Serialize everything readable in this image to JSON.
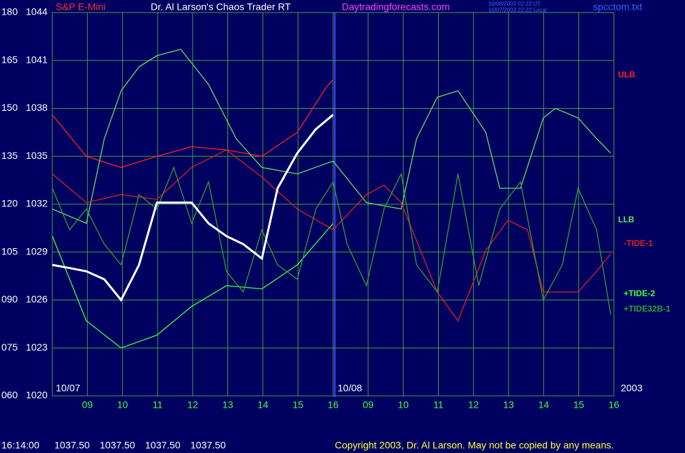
{
  "chart_data": {
    "type": "line",
    "header": {
      "symbol": "S&P E-Mini",
      "title": "Dr. Al Larson's Chaos Trader RT",
      "site": "Daytradingforecasts.com",
      "time_ut": "10/08/2003 02:22 UT",
      "time_local": "10/07/2003 22:22 Local",
      "file": "spcctom.txt"
    },
    "date_labels": [
      "10/07",
      "10/08",
      "2003"
    ],
    "xlim": [
      0,
      16
    ],
    "xticks": [
      {
        "value": 1,
        "label": "09"
      },
      {
        "value": 2,
        "label": "10"
      },
      {
        "value": 3,
        "label": "11"
      },
      {
        "value": 4,
        "label": "12"
      },
      {
        "value": 5,
        "label": "13"
      },
      {
        "value": 6,
        "label": "14"
      },
      {
        "value": 7,
        "label": "15"
      },
      {
        "value": 8,
        "label": "16"
      },
      {
        "value": 9,
        "label": "09"
      },
      {
        "value": 10,
        "label": "10"
      },
      {
        "value": 11,
        "label": "11"
      },
      {
        "value": 12,
        "label": "12"
      },
      {
        "value": 13,
        "label": "13"
      },
      {
        "value": 14,
        "label": "14"
      },
      {
        "value": 15,
        "label": "15"
      },
      {
        "value": 16,
        "label": "16"
      }
    ],
    "ylim": [
      1020,
      1044
    ],
    "yticks": [
      1020,
      1023,
      1026,
      1029,
      1032,
      1035,
      1038,
      1041,
      1044
    ],
    "y2lim": [
      60,
      180
    ],
    "y2ticks": [
      {
        "value": 60,
        "label": "060"
      },
      {
        "value": 75,
        "label": "075"
      },
      {
        "value": 90,
        "label": "090"
      },
      105,
      120,
      135,
      150,
      165,
      180
    ],
    "grid": true,
    "price": {
      "color": "#ffffff",
      "x": [
        0,
        0.5,
        0.97,
        1.48,
        1.96,
        2.47,
        2.98,
        3.46,
        3.97,
        4.45,
        4.96,
        5.44,
        5.97,
        6.42,
        6.98,
        7.51,
        8
      ],
      "values": [
        1028.2,
        1028.0,
        1027.8,
        1027.3,
        1026.0,
        1028.2,
        1032.1,
        1032.1,
        1032.1,
        1030.8,
        1030.0,
        1029.5,
        1028.6,
        1033.0,
        1035.2,
        1036.7,
        1037.6
      ]
    },
    "series": [
      {
        "name": "ULB",
        "color": "#ff2020",
        "x": [
          0,
          0.97,
          1.96,
          2.98,
          3.97,
          4.96,
          5.97,
          6.98,
          7.8,
          8
        ],
        "values": [
          1037.6,
          1035.0,
          1034.3,
          1035.0,
          1035.6,
          1035.4,
          1035.0,
          1036.5,
          1039.3,
          1039.8
        ]
      },
      {
        "name": "LLB",
        "color": "#60e060",
        "x": [
          0,
          0.97,
          1.48,
          1.96,
          2.47,
          2.98,
          3.66,
          4.45,
          5.24,
          5.97,
          6.98,
          8,
          8.95,
          9.94,
          10.38,
          10.97,
          11.56,
          12.35,
          12.75,
          13.34,
          13.99,
          14.33,
          14.98,
          15.51,
          15.91
        ],
        "values": [
          1031.7,
          1030.8,
          1036.1,
          1039.1,
          1040.6,
          1041.3,
          1041.7,
          1039.5,
          1036.1,
          1034.3,
          1033.9,
          1034.7,
          1032.1,
          1031.7,
          1036.1,
          1038.7,
          1039.1,
          1036.5,
          1033.0,
          1033.0,
          1037.4,
          1038.0,
          1037.4,
          1036.1,
          1035.2
        ]
      },
      {
        "name": "-TIDE-1",
        "color": "#e02020",
        "x": [
          0,
          0.97,
          1.96,
          2.98,
          3.97,
          4.96,
          5.97,
          6.98,
          8,
          8.95,
          9.45,
          9.94,
          10.97,
          11.56,
          12.35,
          12.98,
          13.54,
          13.99,
          14.98,
          15.51,
          15.91
        ],
        "values": [
          1033.9,
          1032.1,
          1032.6,
          1032.3,
          1034.3,
          1035.4,
          1033.7,
          1031.7,
          1030.4,
          1032.6,
          1033.2,
          1032.1,
          1026.5,
          1024.7,
          1029.1,
          1031.0,
          1030.4,
          1026.5,
          1026.5,
          1027.8,
          1028.9
        ]
      },
      {
        "name": "+TIDE-2",
        "color": "#40ff40",
        "x": [
          0,
          0.97,
          1.96,
          2.98,
          3.97,
          4.96,
          5.97,
          6.98,
          8
        ],
        "values": [
          1030.0,
          1024.7,
          1023.0,
          1023.8,
          1025.6,
          1026.9,
          1026.7,
          1028.2,
          1030.8
        ]
      },
      {
        "name": "+TIDE32B-1",
        "color": "#30a030",
        "x": [
          0,
          0.49,
          0.97,
          1.48,
          1.96,
          2.47,
          2.98,
          3.46,
          3.97,
          4.45,
          4.96,
          5.44,
          5.97,
          6.42,
          6.98,
          7.51,
          8,
          8.4,
          8.95,
          9.45,
          9.94,
          10.38,
          10.97,
          11.56,
          12.15,
          12.75,
          13.34,
          13.99,
          14.53,
          14.98,
          15.51,
          15.91
        ],
        "values": [
          1033.0,
          1030.4,
          1031.7,
          1029.5,
          1028.2,
          1032.6,
          1031.7,
          1034.3,
          1030.8,
          1033.4,
          1027.8,
          1026.5,
          1030.4,
          1028.2,
          1027.3,
          1031.7,
          1033.4,
          1029.5,
          1026.9,
          1031.7,
          1033.9,
          1028.2,
          1026.5,
          1033.9,
          1026.9,
          1031.7,
          1033.4,
          1026.0,
          1028.2,
          1033.0,
          1030.4,
          1025.1
        ]
      }
    ],
    "footer": {
      "time": "16:14:00",
      "quotes": [
        "1037.50",
        "1037.50",
        "1037.50",
        "1037.50"
      ],
      "copyright": "Copyright 2003, Dr. Al Larson. May not be copied by any means."
    }
  }
}
